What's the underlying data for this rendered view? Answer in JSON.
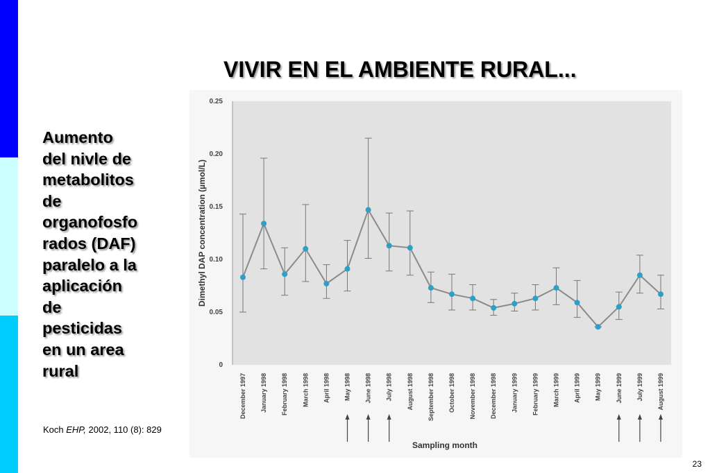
{
  "slide": {
    "title": "VIVIR EN EL AMBIENTE RURAL...",
    "side_text_lines": [
      "Aumento",
      "del nivle de",
      "metabolitos",
      "de",
      "organofosfo",
      "rados (DAF)",
      "paralelo a la",
      "aplicación",
      "de",
      "pesticidas",
      "en un area",
      "rural"
    ],
    "citation": {
      "author": "Koch ",
      "journal": "EHP,",
      "rest": " 2002, 110 (8): 829"
    },
    "page_number": "23",
    "colors": {
      "band_top": "#0000ff",
      "band_middle": "#ccffff",
      "band_bottom": "#00ccff"
    }
  },
  "chart_data": {
    "type": "line",
    "title": "",
    "xlabel": "Sampling month",
    "ylabel": "Dimethyl DAP concentration (µmol/L)",
    "ylim": [
      0,
      0.25
    ],
    "yticks": [
      "0",
      "0.05",
      "0.10",
      "0.15",
      "0.20",
      "0.25"
    ],
    "ytick_values": [
      0,
      0.05,
      0.1,
      0.15,
      0.2,
      0.25
    ],
    "categories": [
      "December 1997",
      "January 1998",
      "February 1998",
      "March 1998",
      "April 1998",
      "May 1998",
      "June 1998",
      "July 1998",
      "August 1998",
      "September 1998",
      "October 1998",
      "November 1998",
      "December 1998",
      "January 1999",
      "February 1999",
      "March 1999",
      "April 1999",
      "May 1999",
      "June 1999",
      "July 1999",
      "August 1999"
    ],
    "series": [
      {
        "values": [
          0.083,
          0.134,
          0.086,
          0.11,
          0.077,
          0.091,
          0.147,
          0.113,
          0.111,
          0.073,
          0.067,
          0.063,
          0.054,
          0.058,
          0.063,
          0.073,
          0.059,
          0.036,
          0.055,
          0.085,
          0.067
        ],
        "error_low": [
          0.05,
          0.091,
          0.066,
          0.079,
          0.063,
          0.07,
          0.101,
          0.089,
          0.085,
          0.059,
          0.052,
          0.052,
          0.047,
          0.051,
          0.052,
          0.057,
          0.045,
          0.036,
          0.043,
          0.068,
          0.053
        ],
        "error_high": [
          0.143,
          0.196,
          0.111,
          0.152,
          0.095,
          0.118,
          0.215,
          0.144,
          0.146,
          0.088,
          0.086,
          0.076,
          0.062,
          0.068,
          0.076,
          0.092,
          0.08,
          0.036,
          0.069,
          0.104,
          0.085
        ]
      }
    ],
    "application_arrows": [
      "May 1998",
      "June 1998",
      "July 1998",
      "June 1999",
      "July 1999",
      "August 1999"
    ],
    "grid": false,
    "colors": {
      "plot_bg": "#e1e2e1",
      "line": "#8a8a8a",
      "marker": "#2e9fc7",
      "error_bar": "#777777"
    }
  }
}
